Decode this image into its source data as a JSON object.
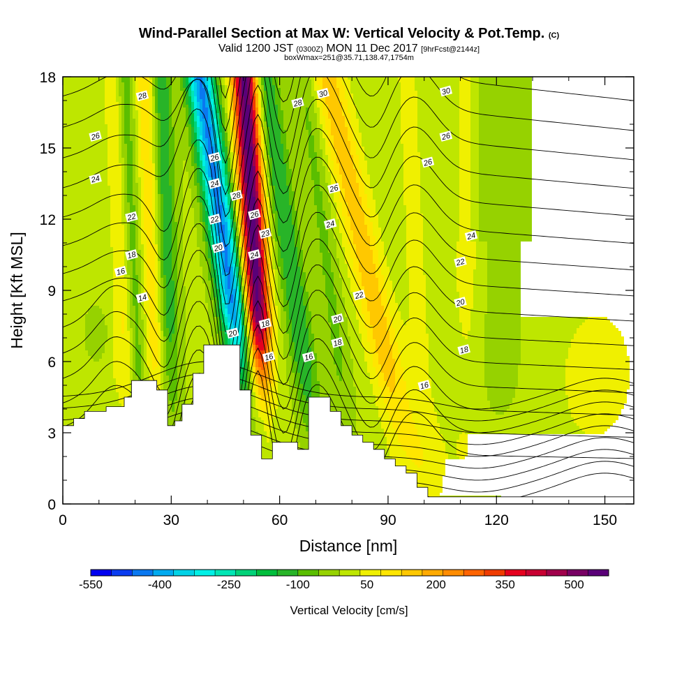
{
  "header": {
    "title": "Wind-Parallel Section at Max W: Vertical Velocity & Pot.Temp.",
    "title_mark": "(C)",
    "valid_prefix": "Valid 1200 JST",
    "valid_utc": "(0300Z)",
    "valid_date": "MON 11 Dec 2017",
    "forecast": "[9hrFcst@2144z]",
    "box_info": "boxWmax=251@35.71,138.47,1754m"
  },
  "chart_data": {
    "type": "heatmap",
    "xlabel": "Distance [nm]",
    "ylabel": "Height [Kft MSL]",
    "xlim": [
      0,
      158
    ],
    "ylim": [
      0,
      18
    ],
    "x_ticks": [
      "0",
      "30",
      "60",
      "90",
      "120",
      "150"
    ],
    "y_ticks": [
      "0",
      "3",
      "6",
      "9",
      "12",
      "15",
      "18"
    ],
    "colorbar": {
      "label": "Vertical Velocity [cm/s]",
      "tick_labels": [
        "-550",
        "-400",
        "-250",
        "-100",
        "50",
        "200",
        "350",
        "500"
      ],
      "tick_values": [
        -550,
        -400,
        -250,
        -100,
        50,
        200,
        350,
        500
      ],
      "range": [
        -550,
        575
      ],
      "colors": [
        "#0000f0",
        "#0a3cf0",
        "#0a78f0",
        "#00aaf0",
        "#00d2e6",
        "#00f0e6",
        "#00e6b4",
        "#00d278",
        "#00be3c",
        "#28b428",
        "#5abe00",
        "#96d200",
        "#bee600",
        "#f0f000",
        "#ffe600",
        "#ffc800",
        "#ffaa00",
        "#ff8c00",
        "#ff6400",
        "#f03c00",
        "#e6001e",
        "#c80032",
        "#a0004b",
        "#780064",
        "#5a0078"
      ]
    },
    "terrain_top_kft": [
      [
        0,
        3.3
      ],
      [
        3,
        3.6
      ],
      [
        6,
        3.9
      ],
      [
        12,
        4.1
      ],
      [
        17,
        4.5
      ],
      [
        19,
        5.2
      ],
      [
        26,
        4.8
      ],
      [
        29,
        3.3
      ],
      [
        31,
        3.5
      ],
      [
        33,
        4.2
      ],
      [
        36,
        5.5
      ],
      [
        39,
        6.7
      ],
      [
        47,
        6.7
      ],
      [
        49,
        4.8
      ],
      [
        52,
        2.9
      ],
      [
        55,
        1.9
      ],
      [
        58,
        2.6
      ],
      [
        63,
        2.6
      ],
      [
        65,
        2.3
      ],
      [
        68,
        4.5
      ],
      [
        71,
        4.5
      ],
      [
        74,
        3.9
      ],
      [
        77,
        3.3
      ],
      [
        80,
        2.9
      ],
      [
        83,
        2.6
      ],
      [
        86,
        2.3
      ],
      [
        89,
        1.9
      ],
      [
        92,
        1.6
      ],
      [
        95,
        1.3
      ],
      [
        98,
        0.7
      ],
      [
        101,
        0.3
      ],
      [
        158,
        0.3
      ]
    ],
    "contour_label": "Potential Temperature",
    "contour_labels": [
      {
        "text": "28",
        "x": 22,
        "y": 17.2
      },
      {
        "text": "26",
        "x": 9,
        "y": 15.5
      },
      {
        "text": "24",
        "x": 9,
        "y": 13.7
      },
      {
        "text": "22",
        "x": 19,
        "y": 12.1
      },
      {
        "text": "18",
        "x": 19,
        "y": 10.5
      },
      {
        "text": "16",
        "x": 16,
        "y": 9.8
      },
      {
        "text": "14",
        "x": 22,
        "y": 8.7
      },
      {
        "text": "26",
        "x": 42,
        "y": 14.6
      },
      {
        "text": "24",
        "x": 42,
        "y": 13.5
      },
      {
        "text": "28",
        "x": 48,
        "y": 13.0
      },
      {
        "text": "22",
        "x": 42,
        "y": 12.0
      },
      {
        "text": "20",
        "x": 43,
        "y": 10.8
      },
      {
        "text": "26",
        "x": 53,
        "y": 12.2
      },
      {
        "text": "23",
        "x": 56,
        "y": 11.4
      },
      {
        "text": "24",
        "x": 53,
        "y": 10.5
      },
      {
        "text": "18",
        "x": 56,
        "y": 7.6
      },
      {
        "text": "16",
        "x": 57,
        "y": 6.2
      },
      {
        "text": "20",
        "x": 47,
        "y": 7.2
      },
      {
        "text": "28",
        "x": 65,
        "y": 16.9
      },
      {
        "text": "30",
        "x": 72,
        "y": 17.3
      },
      {
        "text": "26",
        "x": 75,
        "y": 13.3
      },
      {
        "text": "24",
        "x": 74,
        "y": 11.8
      },
      {
        "text": "22",
        "x": 82,
        "y": 8.8
      },
      {
        "text": "20",
        "x": 76,
        "y": 7.8
      },
      {
        "text": "18",
        "x": 76,
        "y": 6.8
      },
      {
        "text": "16",
        "x": 68,
        "y": 6.2
      },
      {
        "text": "30",
        "x": 106,
        "y": 17.4
      },
      {
        "text": "26",
        "x": 106,
        "y": 15.5
      },
      {
        "text": "26",
        "x": 101,
        "y": 14.4
      },
      {
        "text": "24",
        "x": 113,
        "y": 11.3
      },
      {
        "text": "22",
        "x": 110,
        "y": 10.2
      },
      {
        "text": "20",
        "x": 110,
        "y": 8.5
      },
      {
        "text": "18",
        "x": 111,
        "y": 6.5
      },
      {
        "text": "16",
        "x": 100,
        "y": 5.0
      }
    ]
  }
}
